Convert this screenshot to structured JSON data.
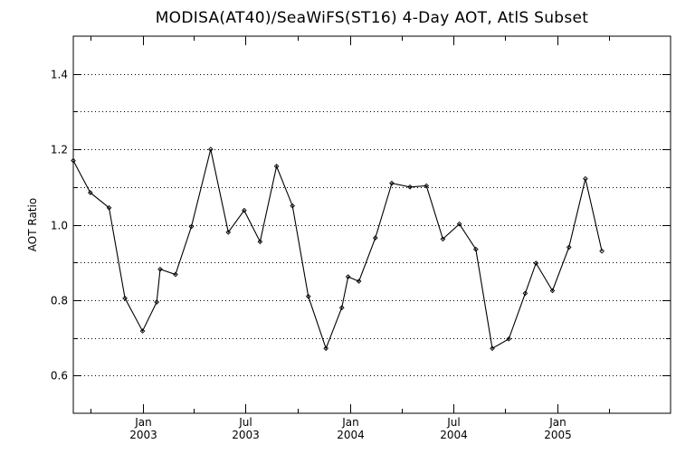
{
  "chart_data": {
    "type": "line",
    "title": "MODISA(AT40)/SeaWiFS(ST16) 4-Day AOT, AtlS Subset",
    "ylabel": "AOT Ratio",
    "xlabel": "",
    "ylim": [
      0.5,
      1.5
    ],
    "xlim": [
      "2002-09-01",
      "2005-07-19"
    ],
    "grid": "horizontal dotted",
    "yticks": [
      {
        "value": 0.6,
        "label": "0.6"
      },
      {
        "value": 0.8,
        "label": "0.8"
      },
      {
        "value": 1.0,
        "label": "1.0"
      },
      {
        "value": 1.2,
        "label": "1.2"
      },
      {
        "value": 1.4,
        "label": "1.4"
      }
    ],
    "yminor": [
      0.7,
      0.9,
      1.1,
      1.3
    ],
    "xticks": [
      {
        "date": "2003-01-01",
        "month": "Jan",
        "year": "2003"
      },
      {
        "date": "2003-07-01",
        "month": "Jul",
        "year": "2003"
      },
      {
        "date": "2004-01-01",
        "month": "Jan",
        "year": "2004"
      },
      {
        "date": "2004-07-01",
        "month": "Jul",
        "year": "2004"
      },
      {
        "date": "2005-01-01",
        "month": "Jan",
        "year": "2005"
      }
    ],
    "xminor": [
      "2002-10-01",
      "2003-04-01",
      "2003-10-01",
      "2004-04-01",
      "2004-10-01",
      "2005-04-01"
    ],
    "series": [
      {
        "points": [
          {
            "x": "2002-09-01",
            "y": 1.17
          },
          {
            "x": "2002-10-01",
            "y": 1.085
          },
          {
            "x": "2002-11-03",
            "y": 1.045
          },
          {
            "x": "2002-12-01",
            "y": 0.805
          },
          {
            "x": "2003-01-01",
            "y": 0.718
          },
          {
            "x": "2003-01-26",
            "y": 0.795
          },
          {
            "x": "2003-02-01",
            "y": 0.882
          },
          {
            "x": "2003-02-28",
            "y": 0.868
          },
          {
            "x": "2003-03-28",
            "y": 0.995
          },
          {
            "x": "2003-05-01",
            "y": 1.2
          },
          {
            "x": "2003-06-01",
            "y": 0.98
          },
          {
            "x": "2003-06-29",
            "y": 1.038
          },
          {
            "x": "2003-07-27",
            "y": 0.955
          },
          {
            "x": "2003-08-25",
            "y": 1.155
          },
          {
            "x": "2003-09-22",
            "y": 1.05
          },
          {
            "x": "2003-10-20",
            "y": 0.81
          },
          {
            "x": "2003-11-20",
            "y": 0.672
          },
          {
            "x": "2003-12-18",
            "y": 0.78
          },
          {
            "x": "2003-12-29",
            "y": 0.862
          },
          {
            "x": "2004-01-17",
            "y": 0.85
          },
          {
            "x": "2004-02-15",
            "y": 0.965
          },
          {
            "x": "2004-03-15",
            "y": 1.11
          },
          {
            "x": "2004-04-16",
            "y": 1.1
          },
          {
            "x": "2004-05-15",
            "y": 1.103
          },
          {
            "x": "2004-06-13",
            "y": 0.962
          },
          {
            "x": "2004-07-12",
            "y": 1.002
          },
          {
            "x": "2004-08-10",
            "y": 0.935
          },
          {
            "x": "2004-09-08",
            "y": 0.672
          },
          {
            "x": "2004-10-07",
            "y": 0.697
          },
          {
            "x": "2004-11-05",
            "y": 0.818
          },
          {
            "x": "2004-11-24",
            "y": 0.898
          },
          {
            "x": "2004-12-23",
            "y": 0.825
          },
          {
            "x": "2005-01-21",
            "y": 0.94
          },
          {
            "x": "2005-02-19",
            "y": 1.122
          },
          {
            "x": "2005-03-20",
            "y": 0.93
          }
        ]
      }
    ],
    "colors": {
      "line": "#000000",
      "background": "#ffffff",
      "grid": "#000000"
    }
  }
}
